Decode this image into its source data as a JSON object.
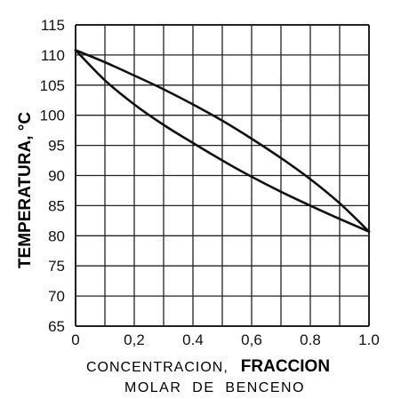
{
  "chart_data": {
    "type": "line",
    "ylabel": "TEMPERATURA, °C",
    "xlabel_line1_a": "CONCENTRACION,",
    "xlabel_line1_b": "FRACCION",
    "xlabel_line2": "MOLAR  DE  BENCENO",
    "xlim": [
      0,
      1
    ],
    "ylim": [
      65,
      115
    ],
    "grid": true,
    "x_ticks": [
      0,
      0.1,
      0.2,
      0.3,
      0.4,
      0.5,
      0.6,
      0.7,
      0.8,
      0.9,
      1.0
    ],
    "x_tick_labels": [
      {
        "x": 0.0,
        "text": "0"
      },
      {
        "x": 0.2,
        "text": "0,2"
      },
      {
        "x": 0.4,
        "text": "0.4"
      },
      {
        "x": 0.6,
        "text": "0,6"
      },
      {
        "x": 0.8,
        "text": "0.8"
      },
      {
        "x": 1.0,
        "text": "1.0"
      }
    ],
    "y_ticks": [
      65,
      70,
      75,
      80,
      85,
      90,
      95,
      100,
      105,
      110,
      115
    ],
    "series": [
      {
        "x": [
          0,
          0.1,
          0.2,
          0.3,
          0.4,
          0.5,
          0.6,
          0.7,
          0.8,
          0.9,
          1.0
        ],
        "y": [
          110.8,
          105.8,
          101.8,
          98.4,
          95.4,
          92.5,
          89.8,
          87.3,
          85.0,
          82.8,
          80.7
        ]
      },
      {
        "x": [
          0,
          0.1,
          0.2,
          0.3,
          0.4,
          0.5,
          0.6,
          0.7,
          0.8,
          0.9,
          1.0
        ],
        "y": [
          110.8,
          108.8,
          106.6,
          104.3,
          101.8,
          99.1,
          96.1,
          92.9,
          89.4,
          85.4,
          80.7
        ]
      }
    ]
  },
  "colors": {
    "line": "#111111",
    "grid": "#222222",
    "background": "#ffffff"
  }
}
